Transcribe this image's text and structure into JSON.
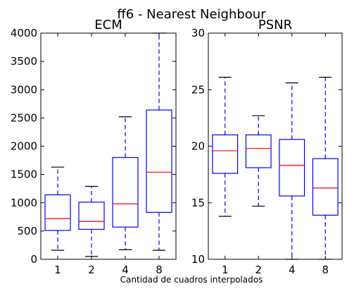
{
  "figure": {
    "suptitle": "ff6 - Nearest Neighbour",
    "xlabel": "Cantidad de cuadros interpolados"
  },
  "colors": {
    "box": "#0000ff",
    "median": "#ff0000",
    "whisker": "#0000ff",
    "cap": "#000000",
    "axes": "#000000"
  },
  "chart_data": [
    {
      "type": "box",
      "title": "ECM",
      "categories": [
        "1",
        "2",
        "4",
        "8"
      ],
      "ylim": [
        0,
        4000
      ],
      "yticks": [
        0,
        500,
        1000,
        1500,
        2000,
        2500,
        3000,
        3500,
        4000
      ],
      "boxes": [
        {
          "category": "1",
          "whisker_low": 160,
          "q1": 510,
          "median": 720,
          "q3": 1140,
          "whisker_high": 1630
        },
        {
          "category": "2",
          "whisker_low": 50,
          "q1": 530,
          "median": 670,
          "q3": 1010,
          "whisker_high": 1290
        },
        {
          "category": "4",
          "whisker_low": 170,
          "q1": 570,
          "median": 980,
          "q3": 1800,
          "whisker_high": 2520
        },
        {
          "category": "8",
          "whisker_low": 160,
          "q1": 830,
          "median": 1540,
          "q3": 2640,
          "whisker_high": 4000
        }
      ]
    },
    {
      "type": "box",
      "title": "PSNR",
      "categories": [
        "1",
        "2",
        "4",
        "8"
      ],
      "ylim": [
        10,
        30
      ],
      "yticks": [
        10,
        15,
        20,
        25,
        30
      ],
      "boxes": [
        {
          "category": "1",
          "whisker_low": 13.8,
          "q1": 17.6,
          "median": 19.6,
          "q3": 21.0,
          "whisker_high": 26.1
        },
        {
          "category": "2",
          "whisker_low": 14.7,
          "q1": 18.1,
          "median": 19.8,
          "q3": 21.0,
          "whisker_high": 22.7
        },
        {
          "category": "4",
          "whisker_low": 10.0,
          "q1": 15.6,
          "median": 18.3,
          "q3": 20.6,
          "whisker_high": 25.6
        },
        {
          "category": "8",
          "whisker_low": 10.0,
          "q1": 13.9,
          "median": 16.3,
          "q3": 18.9,
          "whisker_high": 26.1
        }
      ]
    }
  ]
}
